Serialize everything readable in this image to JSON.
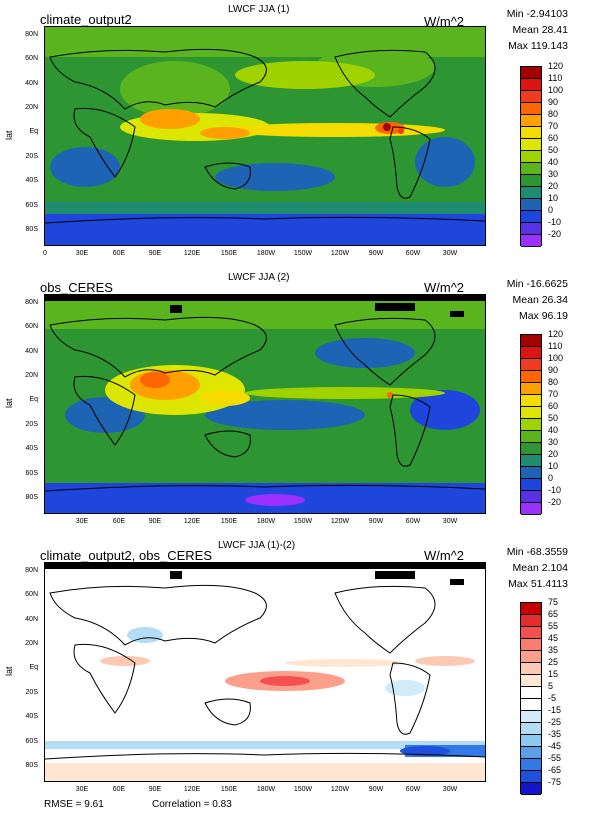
{
  "panels": [
    {
      "title": "LWCF JJA (1)",
      "label": "climate_output2",
      "units": "W/m^2",
      "stats": {
        "min": "Min -2.94103",
        "mean": "Mean 28.41",
        "max": "Max 119.143"
      },
      "cbar_labels": [
        "120",
        "110",
        "100",
        "90",
        "80",
        "70",
        "60",
        "50",
        "40",
        "30",
        "20",
        "10",
        "0",
        "-10",
        "-20"
      ],
      "cbar_colors": [
        "#a50000",
        "#dd1414",
        "#f03c1e",
        "#ff6600",
        "#ffa000",
        "#f5dc00",
        "#dce600",
        "#a0d200",
        "#5ab41e",
        "#2d9632",
        "#1e8c6e",
        "#1e64b4",
        "#1e46dc",
        "#5a32e6",
        "#9b30ff"
      ]
    },
    {
      "title": "LWCF JJA (2)",
      "label": "obs_CERES",
      "units": "W/m^2",
      "stats": {
        "min": "Min -16.6625",
        "mean": "Mean 26.34",
        "max": "Max 96.19"
      },
      "cbar_labels": [
        "120",
        "110",
        "100",
        "90",
        "80",
        "70",
        "60",
        "50",
        "40",
        "30",
        "20",
        "10",
        "0",
        "-10",
        "-20"
      ],
      "cbar_colors": [
        "#a50000",
        "#dd1414",
        "#f03c1e",
        "#ff6600",
        "#ffa000",
        "#f5dc00",
        "#dce600",
        "#a0d200",
        "#5ab41e",
        "#2d9632",
        "#1e8c6e",
        "#1e64b4",
        "#1e46dc",
        "#5a32e6",
        "#9b30ff"
      ]
    },
    {
      "title": "LWCF JJA (1)-(2)",
      "label": "climate_output2, obs_CERES",
      "units": "W/m^2",
      "stats": {
        "min": "Min -68.3559",
        "mean": "Mean 2.104",
        "max": "Max 51.4113"
      },
      "cbar_labels": [
        "75",
        "65",
        "55",
        "45",
        "35",
        "25",
        "15",
        "5",
        "-5",
        "-15",
        "-25",
        "-35",
        "-45",
        "-55",
        "-65",
        "-75"
      ],
      "cbar_colors": [
        "#c80000",
        "#e62d2d",
        "#f55050",
        "#fa7d6e",
        "#fca08c",
        "#fdc8b4",
        "#fee6d2",
        "#ffffff",
        "#ffffff",
        "#d2ebfa",
        "#b4dcf5",
        "#8cc8f0",
        "#5aa0e6",
        "#3278e6",
        "#1e50dc",
        "#1414c8"
      ]
    }
  ],
  "lat_labels": [
    "80N",
    "60N",
    "40N",
    "20N",
    "Eq",
    "20S",
    "40S",
    "60S",
    "80S"
  ],
  "lon_labels_top": [
    "0",
    "30E",
    "60E",
    "90E",
    "120E",
    "150E",
    "180W",
    "150W",
    "120W",
    "90W",
    "60W",
    "30W"
  ],
  "lon_labels": [
    "30E",
    "60E",
    "90E",
    "120E",
    "150E",
    "180W",
    "150W",
    "120W",
    "90W",
    "60W",
    "30W"
  ],
  "ylabel": "lat",
  "footer": {
    "rmse": "RMSE = 9.61",
    "corr": "Correlation = 0.83"
  }
}
